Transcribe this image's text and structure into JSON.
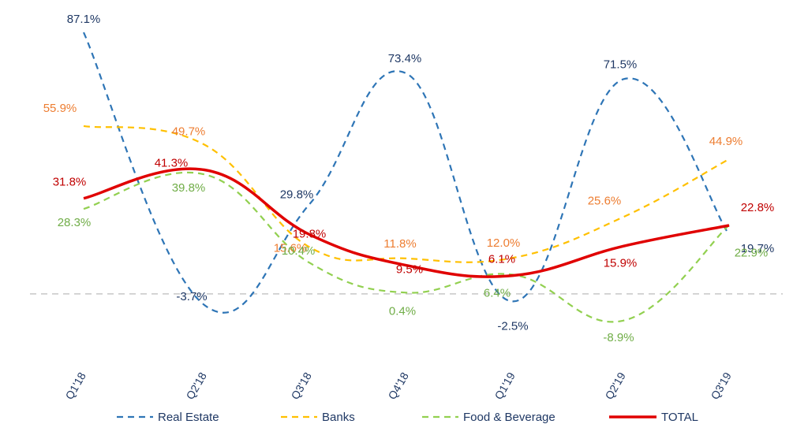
{
  "chart_data": {
    "type": "line",
    "categories": [
      "Q1'18",
      "Q2'18",
      "Q3'18",
      "Q4'18",
      "Q1'19",
      "Q2'19",
      "Q3'19"
    ],
    "ylim": [
      -15,
      90
    ],
    "grid": false,
    "zero_line": true,
    "legend_position": "bottom",
    "series": [
      {
        "name": "Real Estate",
        "key": "real_estate",
        "color": "#2e75b6",
        "dash": "dashed",
        "values": [
          87.1,
          -3.7,
          29.8,
          73.4,
          -2.5,
          71.5,
          19.7
        ],
        "labels": [
          "87.1%",
          "-3.7%",
          "29.8%",
          "73.4%",
          "-2.5%",
          "71.5%",
          "19.7%"
        ],
        "label_color": "#1f3864"
      },
      {
        "name": "Banks",
        "key": "banks",
        "color": "#ffc000",
        "dash": "dashed",
        "values": [
          55.9,
          49.7,
          15.6,
          11.8,
          12.0,
          25.6,
          44.9
        ],
        "labels": [
          "55.9%",
          "49.7%",
          "15.6%",
          "11.8%",
          "12.0%",
          "25.6%",
          "44.9%"
        ],
        "label_color": "#ed7d31"
      },
      {
        "name": "Food & Beverage",
        "key": "food_beverage",
        "color": "#92d050",
        "dash": "dashed",
        "values": [
          28.3,
          39.8,
          10.4,
          0.4,
          6.4,
          -8.9,
          22.9
        ],
        "labels": [
          "28.3%",
          "39.8%",
          "10.4%",
          "0.4%",
          "6.4%",
          "-8.9%",
          "22.9%"
        ],
        "label_color": "#70ad47"
      },
      {
        "name": "TOTAL",
        "key": "total",
        "color": "#e00000",
        "dash": "solid",
        "values": [
          31.8,
          41.3,
          19.8,
          9.5,
          6.1,
          15.9,
          22.8
        ],
        "labels": [
          "31.8%",
          "41.3%",
          "19.8%",
          "9.5%",
          "6.1%",
          "15.9%",
          "22.8%"
        ],
        "label_color": "#c00000"
      }
    ]
  }
}
